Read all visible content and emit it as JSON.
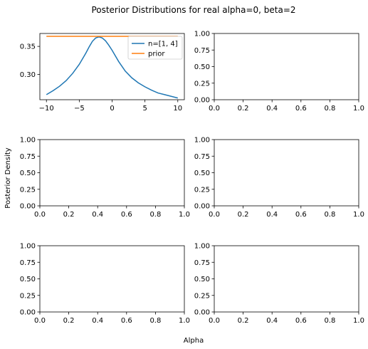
{
  "figure": {
    "suptitle": "Posterior Distributions for real alpha=0, beta=2",
    "xlabel": "Alpha",
    "ylabel": "Posterior Density"
  },
  "colors": {
    "posterior": "#1f77b4",
    "prior": "#ff7f0e"
  },
  "chart_data": [
    {
      "type": "line",
      "panel": "row1-col1",
      "xlim": [
        -11,
        11
      ],
      "ylim": [
        0.255,
        0.373
      ],
      "xticks": [
        -10,
        -5,
        0,
        5,
        10
      ],
      "xtick_labels": [
        "−10",
        "−5",
        "0",
        "5",
        "10"
      ],
      "yticks": [
        0.3,
        0.35
      ],
      "ytick_labels": [
        "0.30",
        "0.35"
      ],
      "legend_position": "top-right",
      "series": [
        {
          "name": "n=[1, 4]",
          "color": "#1f77b4",
          "x": [
            -10,
            -9,
            -8,
            -7,
            -6,
            -5,
            -4,
            -3.5,
            -3,
            -2.5,
            -2,
            -1.5,
            -1,
            -0.5,
            0,
            1,
            2,
            3,
            4,
            5,
            6,
            7,
            8,
            9,
            10
          ],
          "y": [
            0.264,
            0.271,
            0.279,
            0.289,
            0.302,
            0.318,
            0.338,
            0.349,
            0.359,
            0.365,
            0.367,
            0.365,
            0.36,
            0.352,
            0.343,
            0.323,
            0.306,
            0.294,
            0.285,
            0.278,
            0.272,
            0.267,
            0.264,
            0.261,
            0.258
          ]
        },
        {
          "name": "prior",
          "color": "#ff7f0e",
          "x": [
            -10,
            10
          ],
          "y": [
            0.368,
            0.368
          ]
        }
      ]
    },
    {
      "type": "line",
      "panel": "row1-col2",
      "xlim": [
        0,
        1
      ],
      "ylim": [
        0,
        1
      ],
      "xtick_labels": [
        "0.0",
        "0.2",
        "0.4",
        "0.6",
        "0.8",
        "1.0"
      ],
      "ytick_labels": [
        "0.00",
        "0.25",
        "0.50",
        "0.75",
        "1.00"
      ],
      "series": []
    },
    {
      "type": "line",
      "panel": "row2-col1",
      "xlim": [
        0,
        1
      ],
      "ylim": [
        0,
        1
      ],
      "xtick_labels": [
        "0.0",
        "0.2",
        "0.4",
        "0.6",
        "0.8",
        "1.0"
      ],
      "ytick_labels": [
        "0.00",
        "0.25",
        "0.50",
        "0.75",
        "1.00"
      ],
      "series": []
    },
    {
      "type": "line",
      "panel": "row2-col2",
      "xlim": [
        0,
        1
      ],
      "ylim": [
        0,
        1
      ],
      "xtick_labels": [
        "0.0",
        "0.2",
        "0.4",
        "0.6",
        "0.8",
        "1.0"
      ],
      "ytick_labels": [
        "0.00",
        "0.25",
        "0.50",
        "0.75",
        "1.00"
      ],
      "series": []
    },
    {
      "type": "line",
      "panel": "row3-col1",
      "xlim": [
        0,
        1
      ],
      "ylim": [
        0,
        1
      ],
      "xtick_labels": [
        "0.0",
        "0.2",
        "0.4",
        "0.6",
        "0.8",
        "1.0"
      ],
      "ytick_labels": [
        "0.00",
        "0.25",
        "0.50",
        "0.75",
        "1.00"
      ],
      "series": []
    },
    {
      "type": "line",
      "panel": "row3-col2",
      "xlim": [
        0,
        1
      ],
      "ylim": [
        0,
        1
      ],
      "xtick_labels": [
        "0.0",
        "0.2",
        "0.4",
        "0.6",
        "0.8",
        "1.0"
      ],
      "ytick_labels": [
        "0.00",
        "0.25",
        "0.50",
        "0.75",
        "1.00"
      ],
      "series": []
    }
  ]
}
